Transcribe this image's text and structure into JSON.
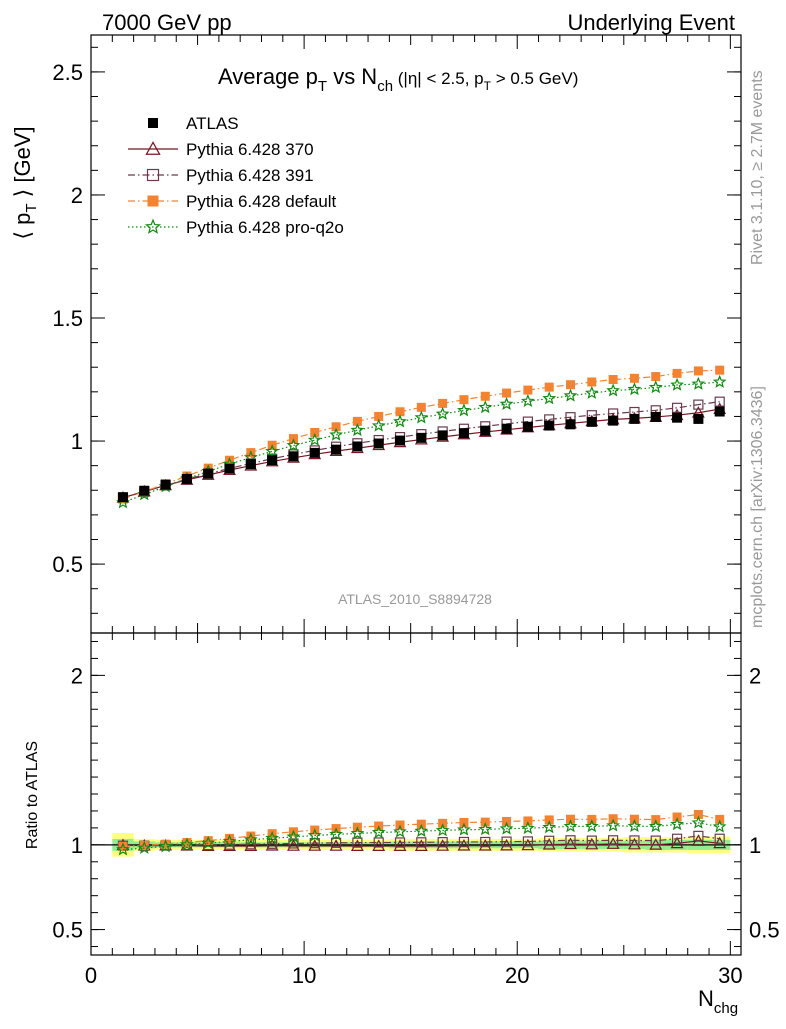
{
  "header": {
    "left": "7000 GeV pp",
    "right": "Underlying Event"
  },
  "side": {
    "rivet": "Rivet 3.1.10, ≥ 2.7M events",
    "mcplots": "mcplots.cern.ch [arXiv:1306.3436]"
  },
  "chart_data": [
    {
      "type": "scatter",
      "panel": "main",
      "title": "Average pT vs Nch (|η| < 2.5, pT > 0.5 GeV)",
      "title_parts": {
        "a": "Average p",
        "a_sub": "T",
        "b": " vs N",
        "b_sub": "ch",
        "c": " (|η| < 2.5, p",
        "c_sub": "T",
        "d": " > 0.5 GeV)"
      },
      "ylabel": "⟨ pT ⟩ [GeV]",
      "ylabel_parts": {
        "a": "⟨ p",
        "sub": "T",
        "b": " ⟩ [GeV]"
      },
      "xlabel": "Nchg",
      "xlabel_parts": {
        "a": "N",
        "sub": "chg"
      },
      "xlim": [
        0,
        30.5
      ],
      "ylim": [
        0.22,
        2.65
      ],
      "yticks": [
        0.5,
        1,
        1.5,
        2,
        2.5
      ],
      "ytick_labels": [
        "0.5",
        "1",
        "1.5",
        "2",
        "2.5"
      ],
      "xticks": [
        0,
        10,
        20,
        30
      ],
      "xtick_labels": [
        "0",
        "10",
        "20",
        "30"
      ],
      "watermark": "ATLAS_2010_S8894728",
      "legend_position": "top-left",
      "x": [
        1.5,
        2.5,
        3.5,
        4.5,
        5.5,
        6.5,
        7.5,
        8.5,
        9.5,
        10.5,
        11.5,
        12.5,
        13.5,
        14.5,
        15.5,
        16.5,
        17.5,
        18.5,
        19.5,
        20.5,
        21.5,
        22.5,
        23.5,
        24.5,
        25.5,
        26.5,
        27.5,
        28.5,
        29.5
      ],
      "series": [
        {
          "name": "ATLAS",
          "color": "#000000",
          "marker": "square-filled",
          "line": "none",
          "values": [
            0.772,
            0.798,
            0.823,
            0.846,
            0.868,
            0.888,
            0.906,
            0.922,
            0.938,
            0.952,
            0.965,
            0.978,
            0.99,
            1.002,
            1.013,
            1.023,
            1.032,
            1.042,
            1.05,
            1.058,
            1.063,
            1.068,
            1.078,
            1.083,
            1.09,
            1.098,
            1.095,
            1.09,
            1.12
          ]
        },
        {
          "name": "Pythia 6.428 370",
          "color": "#7b1423",
          "marker": "triangle-open",
          "line": "solid",
          "values": [
            0.77,
            0.795,
            0.82,
            0.842,
            0.862,
            0.882,
            0.9,
            0.917,
            0.932,
            0.946,
            0.959,
            0.971,
            0.983,
            0.995,
            1.006,
            1.017,
            1.027,
            1.037,
            1.046,
            1.055,
            1.064,
            1.072,
            1.08,
            1.088,
            1.092,
            1.098,
            1.105,
            1.115,
            1.13
          ]
        },
        {
          "name": "Pythia 6.428 391",
          "color": "#6b3a4d",
          "marker": "square-open",
          "line": "dashdot",
          "values": [
            0.768,
            0.794,
            0.82,
            0.845,
            0.867,
            0.889,
            0.909,
            0.928,
            0.946,
            0.962,
            0.977,
            0.991,
            1.004,
            1.016,
            1.028,
            1.039,
            1.05,
            1.06,
            1.07,
            1.079,
            1.088,
            1.097,
            1.105,
            1.112,
            1.118,
            1.125,
            1.135,
            1.148,
            1.16
          ]
        },
        {
          "name": "Pythia 6.428 default",
          "color": "#f48331",
          "marker": "square-filled",
          "line": "dashdot",
          "values": [
            0.765,
            0.795,
            0.826,
            0.858,
            0.89,
            0.922,
            0.953,
            0.983,
            1.01,
            1.035,
            1.058,
            1.08,
            1.1,
            1.119,
            1.137,
            1.153,
            1.168,
            1.182,
            1.195,
            1.207,
            1.219,
            1.229,
            1.24,
            1.25,
            1.255,
            1.262,
            1.275,
            1.285,
            1.288
          ]
        },
        {
          "name": "Pythia 6.428 pro-q2o",
          "color": "#0f8a0f",
          "marker": "star-open",
          "line": "dotted",
          "values": [
            0.75,
            0.783,
            0.815,
            0.847,
            0.877,
            0.906,
            0.933,
            0.958,
            0.982,
            1.004,
            1.025,
            1.044,
            1.062,
            1.079,
            1.095,
            1.11,
            1.124,
            1.137,
            1.15,
            1.162,
            1.173,
            1.184,
            1.195,
            1.205,
            1.21,
            1.218,
            1.228,
            1.232,
            1.24
          ]
        }
      ]
    },
    {
      "type": "scatter",
      "panel": "ratio",
      "ylabel": "Ratio to ATLAS",
      "xlim": [
        0,
        30.5
      ],
      "ylim": [
        0.35,
        2.25
      ],
      "yticks": [
        0.5,
        1,
        2
      ],
      "ytick_labels": [
        "0.5",
        "1",
        "2"
      ],
      "band": {
        "x_edges": [
          1,
          2,
          3,
          4,
          5,
          6,
          7,
          8,
          9,
          10,
          11,
          12,
          13,
          14,
          15,
          16,
          17,
          18,
          19,
          20,
          21,
          22,
          23,
          24,
          25,
          26,
          27,
          28,
          29,
          30
        ],
        "yellow_half": [
          0.07,
          0.035,
          0.03,
          0.03,
          0.03,
          0.03,
          0.03,
          0.03,
          0.03,
          0.03,
          0.03,
          0.03,
          0.03,
          0.035,
          0.035,
          0.035,
          0.035,
          0.035,
          0.035,
          0.035,
          0.04,
          0.04,
          0.04,
          0.04,
          0.045,
          0.045,
          0.045,
          0.05,
          0.05
        ],
        "green_half": [
          0.035,
          0.02,
          0.015,
          0.015,
          0.015,
          0.015,
          0.015,
          0.015,
          0.015,
          0.015,
          0.015,
          0.015,
          0.015,
          0.02,
          0.02,
          0.02,
          0.02,
          0.02,
          0.02,
          0.02,
          0.025,
          0.025,
          0.025,
          0.025,
          0.025,
          0.03,
          0.03,
          0.03,
          0.03
        ]
      },
      "series": [
        {
          "name": "Pythia 6.428 370",
          "values": [
            0.998,
            0.996,
            0.996,
            0.995,
            0.993,
            0.993,
            0.993,
            0.995,
            0.994,
            0.994,
            0.994,
            0.993,
            0.993,
            0.993,
            0.993,
            0.994,
            0.995,
            0.995,
            0.996,
            0.997,
            1.001,
            1.004,
            1.002,
            1.005,
            1.002,
            1.0,
            1.009,
            1.023,
            1.009
          ]
        },
        {
          "name": "Pythia 6.428 391",
          "values": [
            0.995,
            0.995,
            0.996,
            0.999,
            0.999,
            1.001,
            1.003,
            1.006,
            1.008,
            1.01,
            1.012,
            1.013,
            1.014,
            1.014,
            1.015,
            1.016,
            1.017,
            1.017,
            1.019,
            1.02,
            1.024,
            1.027,
            1.025,
            1.027,
            1.026,
            1.025,
            1.036,
            1.053,
            1.036
          ]
        },
        {
          "name": "Pythia 6.428 default",
          "values": [
            0.991,
            0.996,
            1.004,
            1.014,
            1.025,
            1.038,
            1.052,
            1.066,
            1.077,
            1.087,
            1.096,
            1.104,
            1.111,
            1.117,
            1.122,
            1.127,
            1.132,
            1.134,
            1.138,
            1.141,
            1.147,
            1.151,
            1.15,
            1.154,
            1.151,
            1.149,
            1.164,
            1.179,
            1.15
          ]
        },
        {
          "name": "Pythia 6.428 pro-q2o",
          "values": [
            0.972,
            0.981,
            0.99,
            1.001,
            1.01,
            1.02,
            1.03,
            1.039,
            1.047,
            1.055,
            1.062,
            1.067,
            1.073,
            1.077,
            1.081,
            1.085,
            1.089,
            1.091,
            1.095,
            1.098,
            1.103,
            1.109,
            1.109,
            1.113,
            1.11,
            1.109,
            1.121,
            1.13,
            1.107
          ]
        }
      ]
    }
  ]
}
